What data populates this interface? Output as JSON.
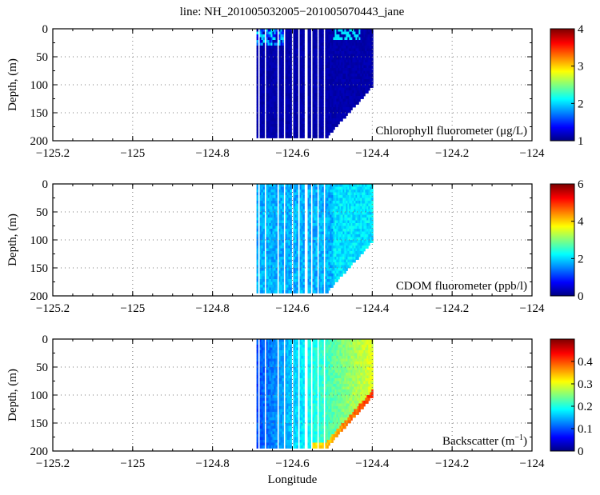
{
  "title": "line: NH_201005032005−201005070443_jane",
  "chart_data": [
    {
      "type": "heatmap",
      "label": "Chlorophyll fluorometer (μg/L)",
      "ylabel": "Depth, (m)",
      "xlabel": "",
      "xlim": [
        -125.2,
        -124
      ],
      "ylim": [
        200,
        0
      ],
      "xticks": [
        "−125.2",
        "−125",
        "−124.8",
        "−124.6",
        "−124.4",
        "−124.2",
        "−124"
      ],
      "yticks": [
        "0",
        "50",
        "100",
        "150",
        "200"
      ],
      "clim": [
        1,
        4
      ],
      "cticks": [
        "1",
        "2",
        "3",
        "4"
      ],
      "colormap": "jet",
      "data_extent_lon": [
        -124.69,
        -124.4
      ],
      "typical_value": 1.1,
      "surface_value": 1.8,
      "grid": true
    },
    {
      "type": "heatmap",
      "label": "CDOM fluorometer (ppb/l)",
      "ylabel": "Depth, (m)",
      "xlabel": "",
      "xlim": [
        -125.2,
        -124
      ],
      "ylim": [
        200,
        0
      ],
      "xticks": [
        "−125.2",
        "−125",
        "−124.8",
        "−124.6",
        "−124.4",
        "−124.2",
        "−124"
      ],
      "yticks": [
        "0",
        "50",
        "100",
        "150",
        "200"
      ],
      "clim": [
        0,
        6
      ],
      "cticks": [
        "0",
        "2",
        "4",
        "6"
      ],
      "colormap": "jet",
      "data_extent_lon": [
        -124.69,
        -124.4
      ],
      "typical_value": 1.7,
      "surface_value": 1.9,
      "grid": true
    },
    {
      "type": "heatmap",
      "label": "Backscatter (m",
      "label_sup": "−1",
      "label_end": ")",
      "ylabel": "Depth, (m)",
      "xlabel": "Longitude",
      "xlim": [
        -125.2,
        -124
      ],
      "ylim": [
        200,
        0
      ],
      "xticks": [
        "−125.2",
        "−125",
        "−124.8",
        "−124.6",
        "−124.4",
        "−124.2",
        "−124"
      ],
      "yticks": [
        "0",
        "50",
        "100",
        "150",
        "200"
      ],
      "clim": [
        0,
        0.5
      ],
      "cticks": [
        "0",
        "0.1",
        "0.2",
        "0.3",
        "0.4"
      ],
      "cticks_values": [
        0,
        0.1,
        0.2,
        0.3,
        0.4
      ],
      "colormap": "jet",
      "data_extent_lon": [
        -124.69,
        -124.4
      ],
      "west_value": 0.12,
      "east_value": 0.3,
      "grid": true
    }
  ]
}
